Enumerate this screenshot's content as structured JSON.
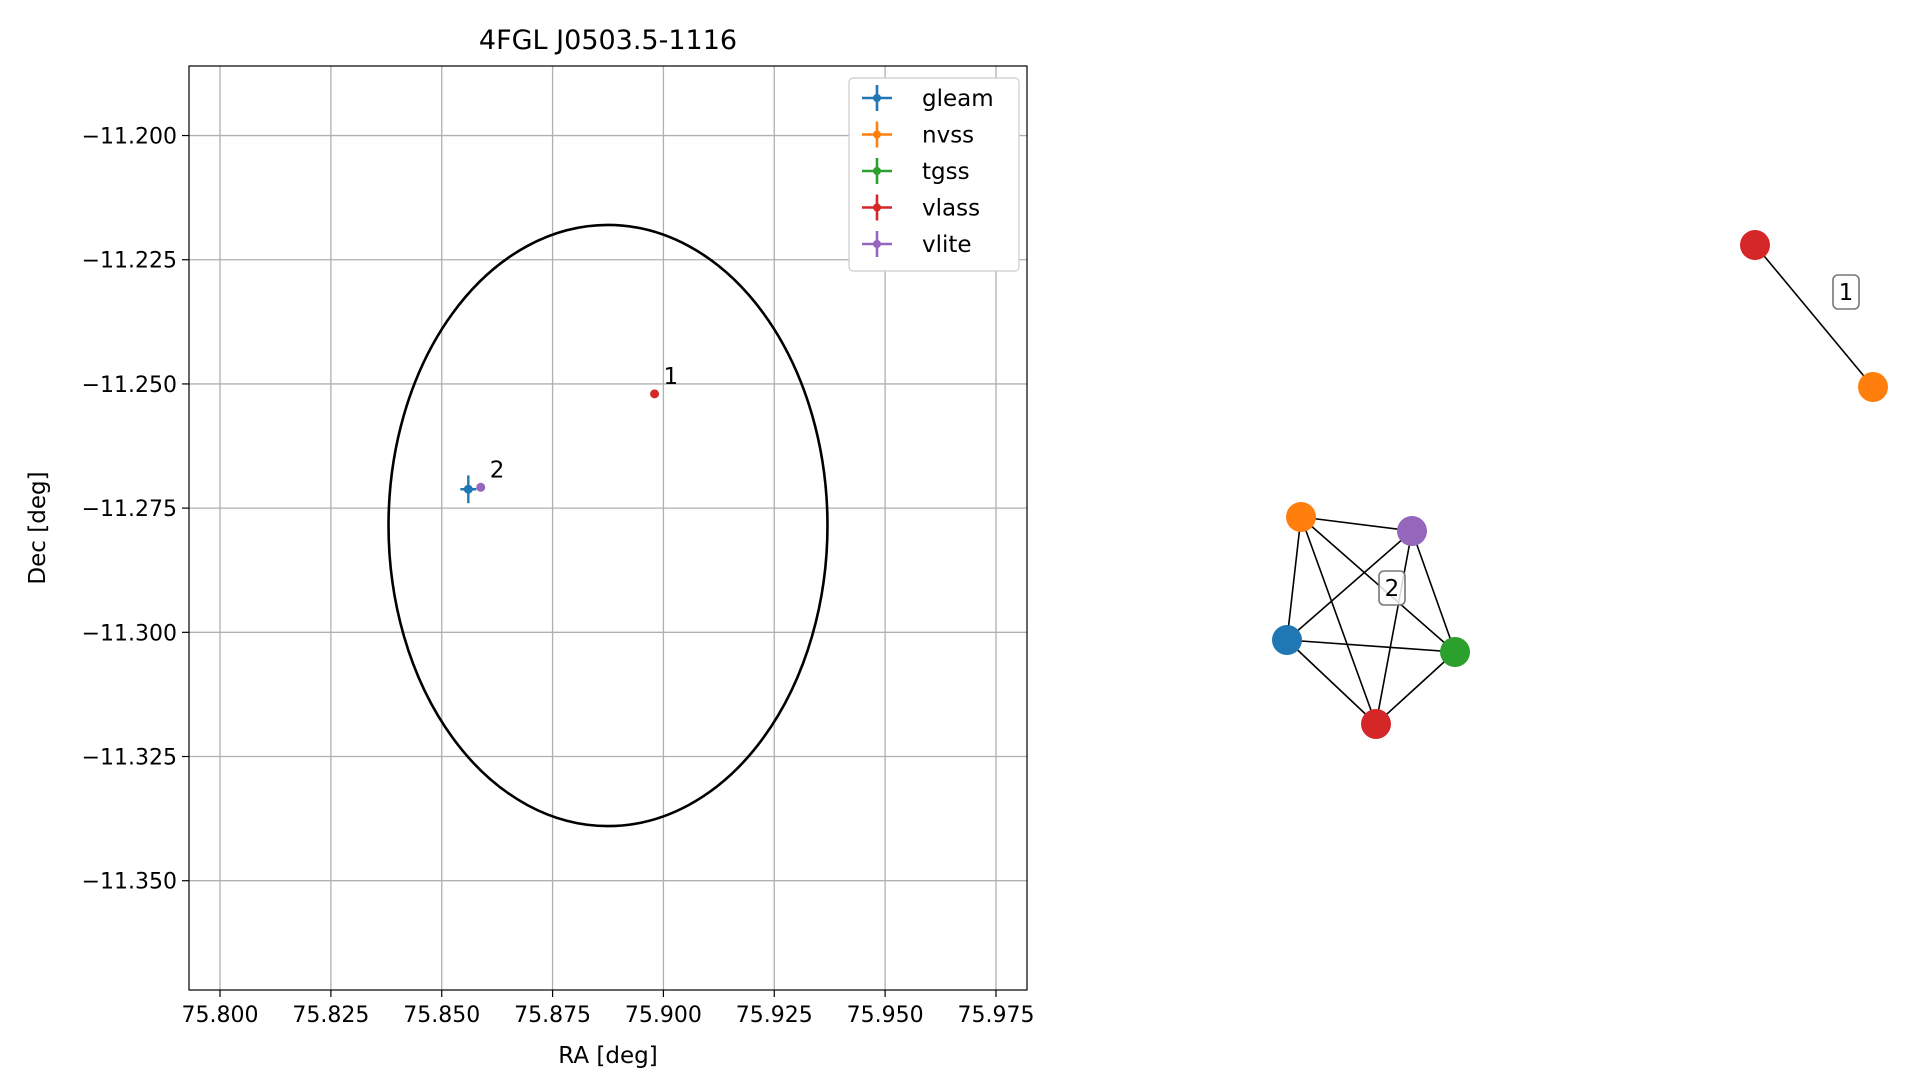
{
  "chart_data": [
    {
      "type": "scatter",
      "title": "4FGL J0503.5-1116",
      "xlabel": "RA [deg]",
      "ylabel": "Dec [deg]",
      "xlim": [
        75.793,
        75.982
      ],
      "ylim": [
        -11.372,
        -11.186
      ],
      "grid": true,
      "xticks": [
        75.8,
        75.825,
        75.85,
        75.875,
        75.9,
        75.925,
        75.95,
        75.975
      ],
      "xtick_labels": [
        "75.800",
        "75.825",
        "75.850",
        "75.875",
        "75.900",
        "75.925",
        "75.950",
        "75.975"
      ],
      "yticks": [
        -11.2,
        -11.225,
        -11.25,
        -11.275,
        -11.3,
        -11.325,
        -11.35
      ],
      "ytick_labels": [
        "−11.200",
        "−11.225",
        "−11.250",
        "−11.275",
        "−11.300",
        "−11.325",
        "−11.350"
      ],
      "legend_position": "upper-right",
      "series": [
        {
          "name": "gleam",
          "color": "#1f77b4",
          "points": [
            {
              "x": 75.856,
              "y": -11.2712,
              "xerr": 0.0018,
              "yerr": 0.0028
            }
          ]
        },
        {
          "name": "nvss",
          "color": "#ff7f0e",
          "points": []
        },
        {
          "name": "tgss",
          "color": "#2ca02c",
          "points": []
        },
        {
          "name": "vlass",
          "color": "#d62728",
          "points": [
            {
              "x": 75.898,
              "y": -11.252,
              "xerr": 0.0002,
              "yerr": 0.0002
            }
          ]
        },
        {
          "name": "vlite",
          "color": "#9467bd",
          "points": [
            {
              "x": 75.8588,
              "y": -11.2708,
              "xerr": 0.0003,
              "yerr": 0.0003
            }
          ]
        }
      ],
      "annotations": [
        {
          "text": "1",
          "x": 75.898,
          "y": -11.252
        },
        {
          "text": "2",
          "x": 75.8588,
          "y": -11.2708
        }
      ],
      "ellipse": {
        "center": [
          75.8875,
          -11.2785
        ],
        "semi_axes_deg": [
          0.0495,
          0.0605
        ],
        "color": "#000000"
      }
    },
    {
      "type": "network",
      "nodes": [
        {
          "id": "g1-vlass",
          "color": "#d62728"
        },
        {
          "id": "g1-nvss",
          "color": "#ff7f0e"
        },
        {
          "id": "g2-nvss",
          "color": "#ff7f0e"
        },
        {
          "id": "g2-vlite",
          "color": "#9467bd"
        },
        {
          "id": "g2-gleam",
          "color": "#1f77b4"
        },
        {
          "id": "g2-tgss",
          "color": "#2ca02c"
        },
        {
          "id": "g2-vlass",
          "color": "#d62728"
        }
      ],
      "edges": [
        [
          "g1-vlass",
          "g1-nvss"
        ],
        [
          "g2-nvss",
          "g2-vlite"
        ],
        [
          "g2-nvss",
          "g2-gleam"
        ],
        [
          "g2-nvss",
          "g2-tgss"
        ],
        [
          "g2-nvss",
          "g2-vlass"
        ],
        [
          "g2-vlite",
          "g2-gleam"
        ],
        [
          "g2-vlite",
          "g2-tgss"
        ],
        [
          "g2-vlite",
          "g2-vlass"
        ],
        [
          "g2-gleam",
          "g2-tgss"
        ],
        [
          "g2-gleam",
          "g2-vlass"
        ],
        [
          "g2-tgss",
          "g2-vlass"
        ]
      ],
      "group_labels": [
        {
          "text": "1",
          "group": 1
        },
        {
          "text": "2",
          "group": 2
        }
      ]
    }
  ]
}
